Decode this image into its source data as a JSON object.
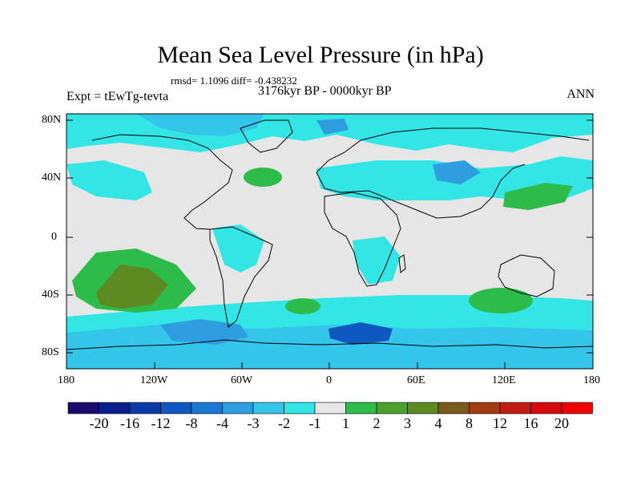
{
  "title": "Mean Sea Level Pressure (in hPa)",
  "stats": "rmsd= 1.1096 diff= -0.438232",
  "experiment": "Expt = tEwTg-tevta",
  "period": "3176kyr BP - 0000kyr BP",
  "season": "ANN",
  "lat_ticks": [
    "80N",
    "40N",
    "0",
    "40S",
    "80S"
  ],
  "lon_ticks": [
    "180",
    "120W",
    "60W",
    "0",
    "60E",
    "120E",
    "180"
  ],
  "colorbar": {
    "levels": [
      "-20",
      "-16",
      "-12",
      "-8",
      "-4",
      "-3",
      "-2",
      "-1",
      "1",
      "2",
      "3",
      "4",
      "8",
      "12",
      "16",
      "20"
    ],
    "colors": [
      "#1a0a6e",
      "#0b1e8c",
      "#0a3aa6",
      "#0f58bf",
      "#1a78d0",
      "#2f9ee0",
      "#35c4ea",
      "#33e6e6",
      "#e6e6e6",
      "#2dbb4a",
      "#4aa02c",
      "#5e8a22",
      "#7a5a1a",
      "#a23a12",
      "#c01e0e",
      "#d80a0a",
      "#ee0000"
    ]
  }
}
